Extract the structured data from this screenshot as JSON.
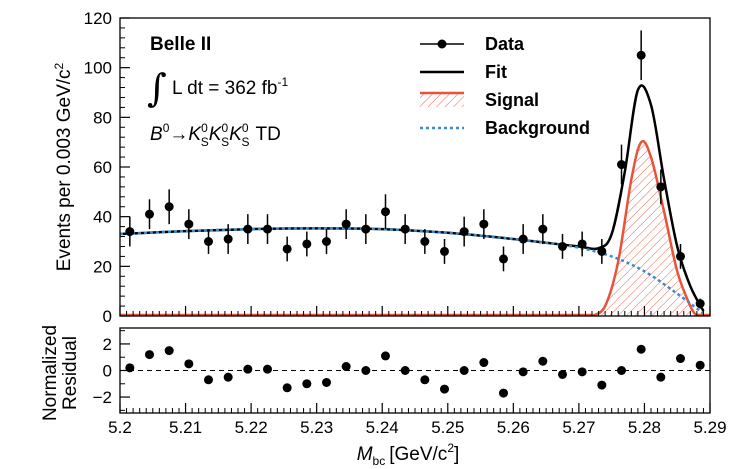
{
  "chart_data": [
    {
      "type": "scatter",
      "panel": "main",
      "ylabel": "Events per 0.003 GeV/c²",
      "ylabel_parts": {
        "text": "Events per 0.003 GeV/c",
        "sup": "2"
      },
      "xlim": [
        5.2,
        5.29
      ],
      "ylim": [
        0,
        120
      ],
      "yticks": [
        0,
        20,
        40,
        60,
        80,
        100,
        120
      ],
      "annotations": {
        "experiment": "Belle II",
        "lumi_prefix": "L dt = 362 fb",
        "lumi_sup": "-1",
        "integral_symbol": "∫",
        "decay": {
          "B": "B",
          "B_sup": "0",
          "arrow": "→",
          "K": "K",
          "K_sub": "S",
          "K_sup": "0",
          "suffix": "TD"
        }
      },
      "legend": {
        "position": "top-right",
        "entries": [
          {
            "label": "Data",
            "style": "marker",
            "color": "#000000"
          },
          {
            "label": "Fit",
            "style": "line",
            "color": "#000000"
          },
          {
            "label": "Signal",
            "style": "hatched",
            "color": "#e8533a"
          },
          {
            "label": "Background",
            "style": "dotted",
            "color": "#3b8bc4"
          }
        ]
      },
      "series": [
        {
          "name": "Data",
          "x": [
            5.2015,
            5.2045,
            5.2075,
            5.2105,
            5.2135,
            5.2165,
            5.2195,
            5.2225,
            5.2255,
            5.2285,
            5.2315,
            5.2345,
            5.2375,
            5.2405,
            5.2435,
            5.2465,
            5.2495,
            5.2525,
            5.2555,
            5.2585,
            5.2615,
            5.2645,
            5.2675,
            5.2705,
            5.2735,
            5.2765,
            5.2795,
            5.2825,
            5.2855,
            5.2885
          ],
          "y": [
            34,
            41,
            44,
            37,
            30,
            31,
            35,
            35,
            27,
            29,
            30,
            37,
            35,
            42,
            35,
            30,
            26,
            34,
            37,
            23,
            31,
            35,
            28,
            29,
            26,
            61,
            105,
            52,
            24,
            5
          ],
          "yerr": [
            6,
            6,
            7,
            6,
            5,
            6,
            6,
            6,
            5,
            5,
            5,
            6,
            6,
            7,
            6,
            5,
            5,
            6,
            6,
            5,
            6,
            6,
            5,
            5,
            5,
            8,
            10,
            7,
            5,
            2
          ]
        },
        {
          "name": "Fit",
          "x": [
            5.2,
            5.21,
            5.22,
            5.23,
            5.24,
            5.25,
            5.26,
            5.265,
            5.27,
            5.273,
            5.275,
            5.277,
            5.279,
            5.281,
            5.283,
            5.285,
            5.287,
            5.289
          ],
          "y": [
            33,
            34.2,
            35,
            35.3,
            35,
            33.5,
            31,
            29.5,
            28,
            27.3,
            33,
            58,
            91,
            85,
            55,
            28,
            12,
            2
          ]
        },
        {
          "name": "Signal",
          "x": [
            5.272,
            5.274,
            5.276,
            5.278,
            5.2795,
            5.281,
            5.283,
            5.285,
            5.287,
            5.288
          ],
          "y": [
            0,
            4,
            22,
            55,
            70,
            64,
            42,
            18,
            4,
            0
          ]
        },
        {
          "name": "Background",
          "x": [
            5.2,
            5.21,
            5.22,
            5.23,
            5.24,
            5.25,
            5.26,
            5.265,
            5.27,
            5.275,
            5.28,
            5.285,
            5.289
          ],
          "y": [
            33,
            34.2,
            35,
            35.3,
            35,
            33.5,
            31,
            29.5,
            27.5,
            24,
            18,
            9,
            1
          ]
        }
      ]
    },
    {
      "type": "scatter",
      "panel": "residual",
      "ylabel": "Normalized Residual",
      "ylabel_lines": [
        "Normalized",
        "Residual"
      ],
      "xlabel": "M_bc [GeV/c²]",
      "xlabel_parts": {
        "main": "M",
        "sub": "bc",
        "unit": "[GeV/c",
        "sup": "2",
        "close": "]"
      },
      "xlim": [
        5.2,
        5.29
      ],
      "ylim": [
        -3.2,
        3.2
      ],
      "yticks": [
        -2,
        0,
        2
      ],
      "ytick_labels": [
        "−2",
        "0",
        "2"
      ],
      "xticks": [
        5.2,
        5.21,
        5.22,
        5.23,
        5.24,
        5.25,
        5.26,
        5.27,
        5.28,
        5.29
      ],
      "xtick_labels": [
        "5.2",
        "5.21",
        "5.22",
        "5.23",
        "5.24",
        "5.25",
        "5.26",
        "5.27",
        "5.28",
        "5.29"
      ],
      "zero_line": "dashed",
      "series": [
        {
          "name": "Residual",
          "x": [
            5.2015,
            5.2045,
            5.2075,
            5.2105,
            5.2135,
            5.2165,
            5.2195,
            5.2225,
            5.2255,
            5.2285,
            5.2315,
            5.2345,
            5.2375,
            5.2405,
            5.2435,
            5.2465,
            5.2495,
            5.2525,
            5.2555,
            5.2585,
            5.2615,
            5.2645,
            5.2675,
            5.2705,
            5.2735,
            5.2765,
            5.2795,
            5.2825,
            5.2855,
            5.2885
          ],
          "y": [
            0.2,
            1.2,
            1.5,
            0.5,
            -0.7,
            -0.5,
            0.1,
            0.1,
            -1.3,
            -1.0,
            -0.9,
            0.3,
            0.0,
            1.1,
            0.0,
            -0.7,
            -1.4,
            0.0,
            0.6,
            -1.7,
            -0.1,
            0.7,
            -0.3,
            -0.1,
            -1.1,
            0.0,
            1.6,
            -0.5,
            0.9,
            0.4
          ]
        }
      ]
    }
  ]
}
